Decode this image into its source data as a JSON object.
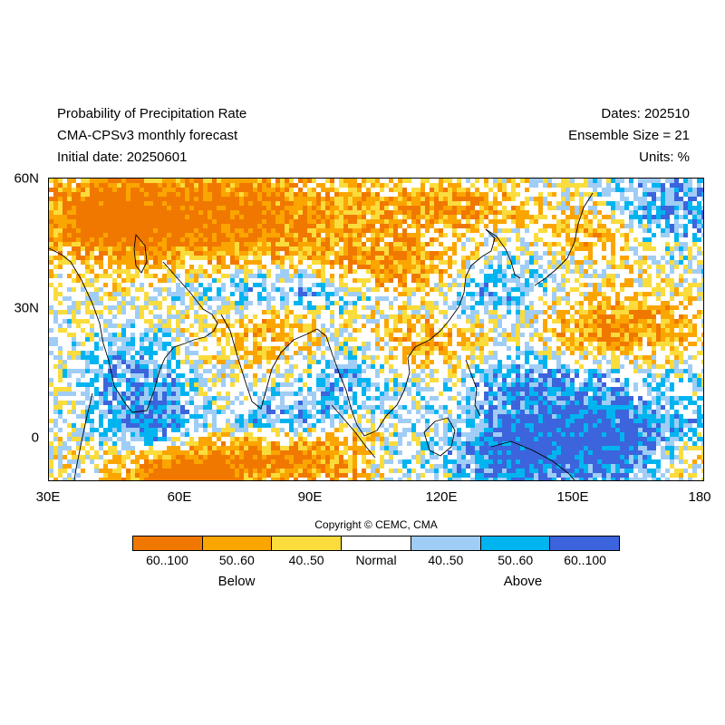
{
  "header": {
    "left": [
      "Probability of Precipitation Rate",
      "CMA-CPSv3 monthly forecast",
      "Initial date: 20250601"
    ],
    "right": [
      "Dates: 202510",
      "Ensemble Size = 21",
      "Units: %"
    ]
  },
  "map": {
    "lon_range": [
      30,
      180
    ],
    "lat_range": [
      -10,
      60
    ],
    "lat_labels": [
      "60N",
      "30N",
      "0"
    ],
    "lon_labels": [
      "30E",
      "60E",
      "90E",
      "120E",
      "150E",
      "180"
    ]
  },
  "copyright": "Copyright © CEMC, CMA",
  "legend": {
    "items": [
      {
        "label": "60..100",
        "color": "#F07800"
      },
      {
        "label": "50..60",
        "color": "#FBA500"
      },
      {
        "label": "40..50",
        "color": "#FADC3C"
      },
      {
        "label": "Normal",
        "color": "#FFFFFF"
      },
      {
        "label": "40..50",
        "color": "#A0CDF5"
      },
      {
        "label": "50..60",
        "color": "#00B4F0"
      },
      {
        "label": "60..100",
        "color": "#3C64DC"
      }
    ],
    "below_label": "Below",
    "above_label": "Above"
  }
}
